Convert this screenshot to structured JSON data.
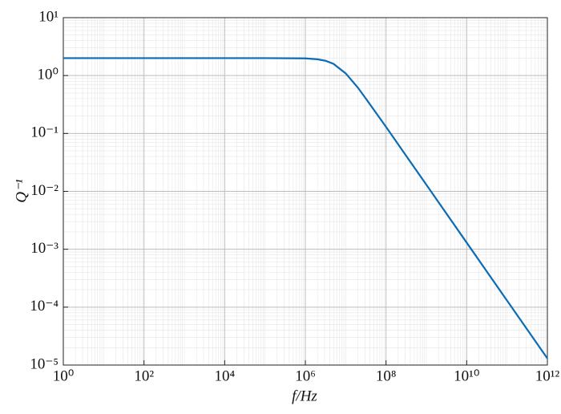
{
  "chart_data": {
    "type": "line",
    "xlabel": "f/Hz",
    "ylabel": "Q⁻¹",
    "log_x": true,
    "log_y": true,
    "grid": true,
    "minor_grid": true,
    "xlim": [
      1,
      1000000000000.0
    ],
    "xticks": [
      {
        "value": 1,
        "label": "10⁰"
      },
      {
        "value": 100,
        "label": "10²"
      },
      {
        "value": 10000,
        "label": "10⁴"
      },
      {
        "value": 1000000,
        "label": "10⁶"
      },
      {
        "value": 100000000,
        "label": "10⁸"
      },
      {
        "value": 10000000000,
        "label": "10¹⁰"
      },
      {
        "value": 1000000000000,
        "label": "10¹²"
      }
    ],
    "ylim": [
      1e-05,
      10
    ],
    "yticks": [
      {
        "value": 1e-05,
        "label": "10⁻⁵"
      },
      {
        "value": 0.0001,
        "label": "10⁻⁴"
      },
      {
        "value": 0.001,
        "label": "10⁻³"
      },
      {
        "value": 0.01,
        "label": "10⁻²"
      },
      {
        "value": 0.1,
        "label": "10⁻¹"
      },
      {
        "value": 1,
        "label": "10⁰"
      },
      {
        "value": 10,
        "label": "10¹"
      }
    ],
    "x": [
      1,
      100,
      10000,
      100000,
      1000000,
      2000000,
      3162000,
      5000000,
      10000000,
      20000000,
      31620000,
      100000000,
      316200000,
      1000000000,
      10000000000,
      100000000000,
      1000000000000
    ],
    "series": [
      {
        "name": "Q⁻¹",
        "color": "#0b6cb5",
        "values": [
          2.0,
          2.0,
          2.0,
          2.0,
          1.98,
          1.91,
          1.8,
          1.59,
          1.09,
          0.62,
          0.4,
          0.13,
          0.041,
          0.013,
          0.0013,
          0.00013,
          1.3e-05
        ]
      }
    ]
  }
}
